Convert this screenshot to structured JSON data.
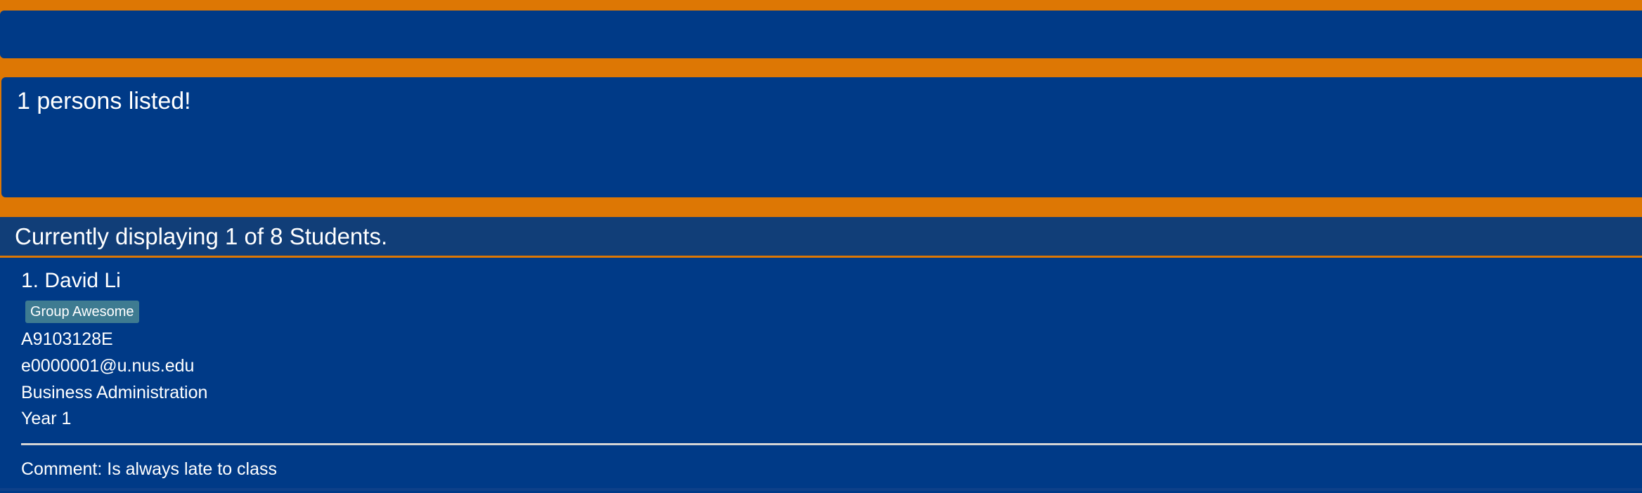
{
  "command_box": {
    "value": "",
    "placeholder": ""
  },
  "result_display": {
    "text": "1 persons listed!"
  },
  "list_header": {
    "text": "Currently displaying 1 of 8 Students."
  },
  "persons": [
    {
      "name_line": "1. David Li",
      "tags": [
        "Group Awesome"
      ],
      "student_id": "A9103128E",
      "email": "e0000001@u.nus.edu",
      "major": "Business Administration",
      "year": "Year 1",
      "comment": "Comment: Is always late to class"
    }
  ],
  "colors": {
    "background": "#dd7704",
    "panel": "#003a87",
    "header": "#113e78",
    "tag": "#3e7b91",
    "text": "#ffffff"
  }
}
